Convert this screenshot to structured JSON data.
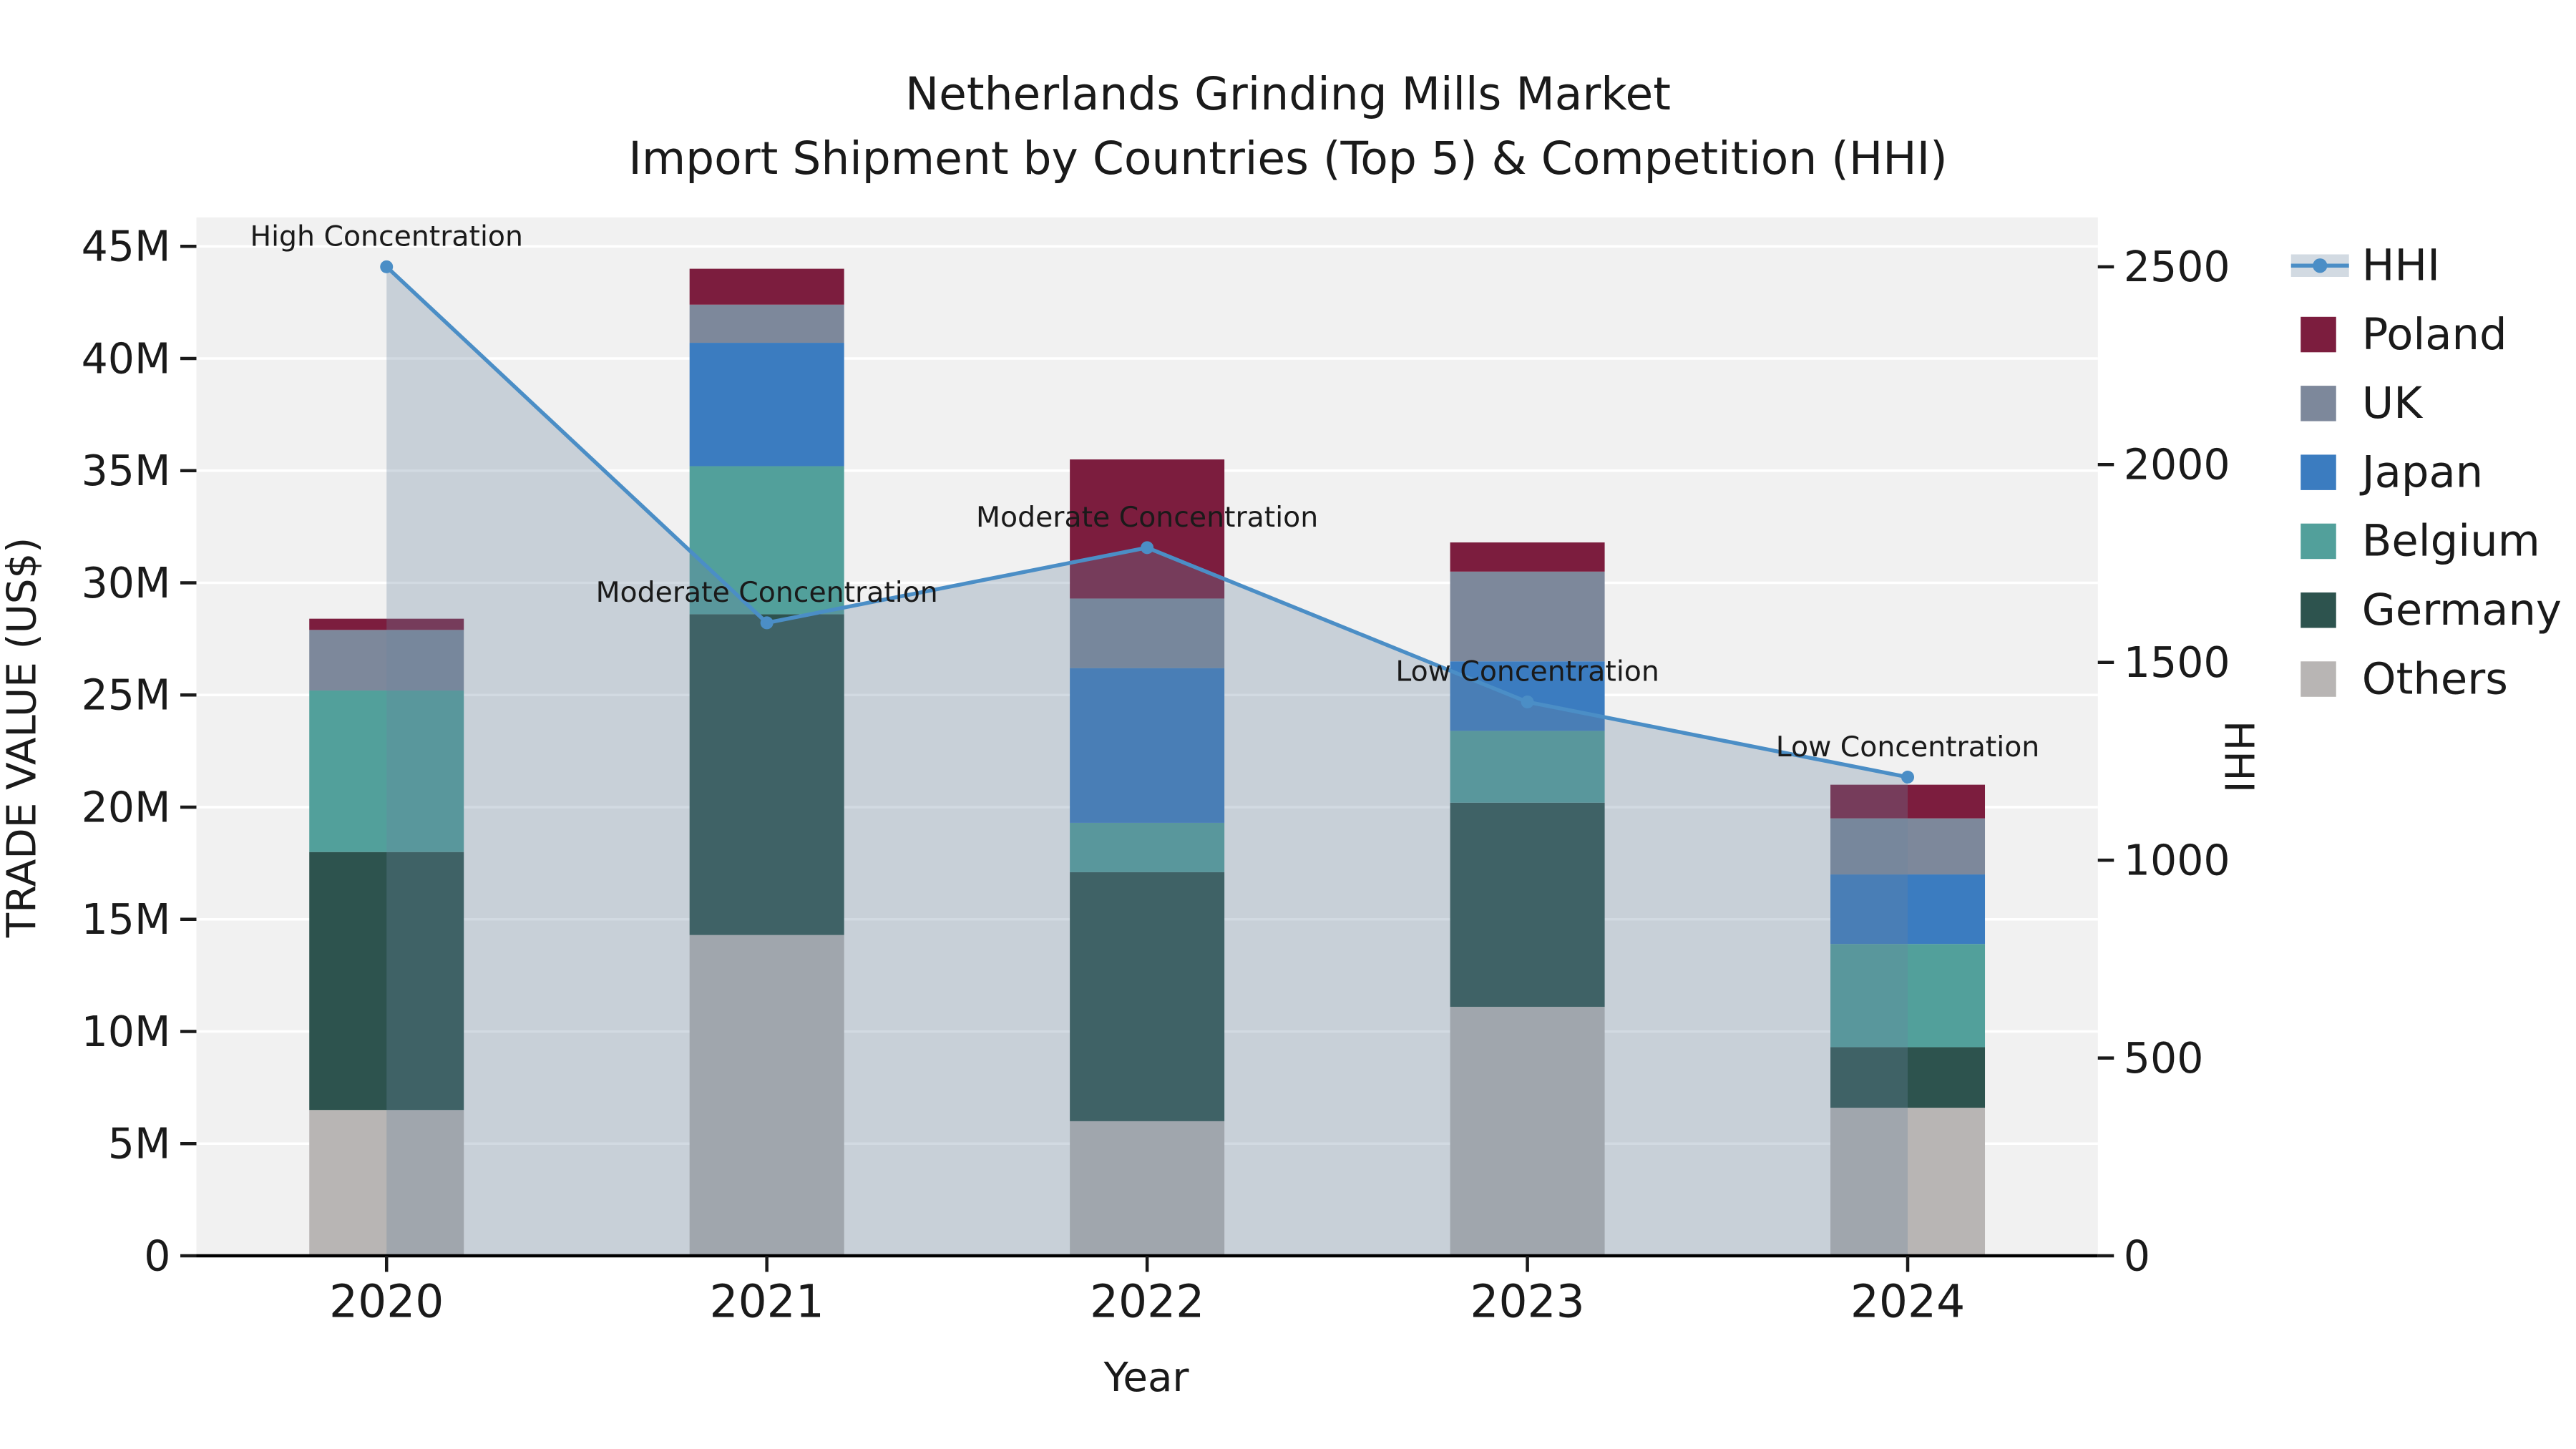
{
  "chart_data": {
    "type": "bar",
    "title": "Netherlands Grinding Mills Market",
    "subtitle": "Import Shipment by Countries (Top 5) & Competition (HHI)",
    "xlabel": "Year",
    "ylabel": "TRADE VALUE (US$)",
    "y2label": "HHI",
    "categories": [
      "2020",
      "2021",
      "2022",
      "2023",
      "2024"
    ],
    "series": [
      {
        "name": "Others",
        "color": "#b8b5b4",
        "values": [
          6.5,
          14.3,
          6.0,
          11.1,
          6.6
        ]
      },
      {
        "name": "Germany",
        "color": "#2d534e",
        "values": [
          11.5,
          14.3,
          11.1,
          9.1,
          2.7
        ]
      },
      {
        "name": "Belgium",
        "color": "#52a09b",
        "values": [
          7.2,
          6.6,
          2.2,
          3.2,
          4.6
        ]
      },
      {
        "name": "Japan",
        "color": "#3b7cc0",
        "values": [
          0,
          5.5,
          6.9,
          3.1,
          3.1
        ]
      },
      {
        "name": "UK",
        "color": "#7d889b",
        "values": [
          2.7,
          1.7,
          3.1,
          4.0,
          2.5
        ]
      },
      {
        "name": "Poland",
        "color": "#7c1d3e",
        "values": [
          0.5,
          1.6,
          6.2,
          1.3,
          1.5
        ]
      }
    ],
    "hhi": {
      "name": "HHI",
      "color": "#4b8ec6",
      "area_fill": "rgba(105,132,160,0.3)",
      "values": [
        2500,
        1600,
        1790,
        1400,
        1210
      ]
    },
    "annotations": [
      "High Concentration",
      "Moderate Concentration",
      "Moderate Concentration",
      "Low Concentration",
      "Low Concentration"
    ],
    "y_axis": {
      "ticks": [
        "0",
        "5M",
        "10M",
        "15M",
        "20M",
        "25M",
        "30M",
        "35M",
        "40M",
        "45M"
      ],
      "tick_values": [
        0,
        5,
        10,
        15,
        20,
        25,
        30,
        35,
        40,
        45
      ]
    },
    "y2_axis": {
      "ticks": [
        "0",
        "500",
        "1000",
        "1500",
        "2000",
        "2500"
      ],
      "tick_values": [
        0,
        500,
        1000,
        1500,
        2000,
        2500
      ]
    },
    "legend": [
      "HHI",
      "Poland",
      "UK",
      "Japan",
      "Belgium",
      "Germany",
      "Others"
    ],
    "colors": {
      "plot_bg": "#f1f1f1",
      "grid": "#ffffff",
      "axis_spine": "#000000",
      "text": "#1a1a1a"
    }
  }
}
